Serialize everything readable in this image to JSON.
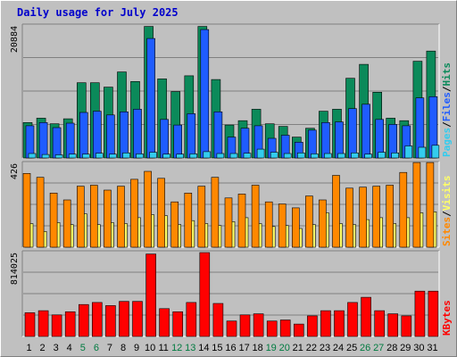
{
  "title": "Daily usage for July 2025",
  "chart_data": {
    "type": "bar",
    "categories": [
      "1",
      "2",
      "3",
      "4",
      "5",
      "6",
      "7",
      "8",
      "9",
      "10",
      "11",
      "12",
      "13",
      "14",
      "15",
      "16",
      "17",
      "18",
      "19",
      "20",
      "21",
      "22",
      "23",
      "24",
      "25",
      "26",
      "27",
      "28",
      "29",
      "30",
      "31"
    ],
    "weekend_days": [
      "5",
      "6",
      "12",
      "13",
      "19",
      "20",
      "26",
      "27"
    ],
    "colors": {
      "hits": "#0b8a5a",
      "files": "#1f5cff",
      "pages": "#33ccee",
      "visits": "#ffff66",
      "sites": "#ff8800",
      "kbytes": "#ff0000",
      "weekday_label": "#000000",
      "weekend_label": "#007b40"
    },
    "panels": [
      {
        "id": "traffic",
        "ymax_label": "20884",
        "ymax": 20884,
        "legend": [
          "Pages",
          "/",
          "Files",
          "/",
          "Hits"
        ],
        "series": [
          {
            "name": "Hits",
            "values": [
              5600,
              6300,
              5400,
              6200,
              11900,
              11900,
              11200,
              13600,
              12100,
              20800,
              12500,
              10500,
              13000,
              20800,
              12400,
              5200,
              5900,
              7700,
              5400,
              5000,
              3300,
              4700,
              7400,
              7700,
              12600,
              14800,
              10400,
              6300,
              5900,
              15300,
              16900
            ]
          },
          {
            "name": "Files",
            "values": [
              5100,
              5600,
              4800,
              5500,
              7200,
              7400,
              6800,
              7300,
              7700,
              18900,
              6100,
              5200,
              7000,
              20300,
              7300,
              3300,
              4700,
              5100,
              3100,
              3600,
              2500,
              4400,
              5600,
              5700,
              7800,
              8500,
              6100,
              5300,
              5100,
              9500,
              9700
            ]
          },
          {
            "name": "Pages",
            "values": [
              700,
              550,
              500,
              600,
              600,
              750,
              600,
              800,
              650,
              900,
              600,
              600,
              650,
              1000,
              700,
              700,
              750,
              1400,
              900,
              700,
              800,
              650,
              700,
              700,
              800,
              600,
              900,
              800,
              1900,
              1700,
              2000
            ]
          }
        ]
      },
      {
        "id": "visitors",
        "ymax_label": "426",
        "ymax": 426,
        "legend": [
          "Sites",
          "/",
          "Visits"
        ],
        "series": [
          {
            "name": "Visits",
            "values": [
              120,
              80,
              125,
              115,
              170,
              115,
              125,
              120,
              150,
              165,
              160,
              115,
              135,
              120,
              110,
              130,
              150,
              120,
              105,
              110,
              95,
              115,
              175,
              120,
              115,
              140,
              150,
              120,
              150,
              175,
              180
            ]
          },
          {
            "name": "Sites",
            "values": [
              375,
              355,
              275,
              240,
              310,
              315,
              290,
              310,
              345,
              385,
              350,
              230,
              275,
              310,
              355,
              250,
              270,
              315,
              230,
              220,
              200,
              260,
              240,
              365,
              300,
              305,
              310,
              315,
              380,
              430,
              430
            ]
          }
        ]
      },
      {
        "id": "kbytes",
        "ymax_label": "814025",
        "ymax": 814025,
        "legend": [
          "KBytes"
        ],
        "series": [
          {
            "name": "KBytes",
            "values": [
              230000,
              250000,
              210000,
              240000,
              310000,
              330000,
              300000,
              340000,
              340000,
              800000,
              270000,
              240000,
              330000,
              814025,
              320000,
              150000,
              210000,
              220000,
              150000,
              160000,
              120000,
              200000,
              250000,
              250000,
              330000,
              380000,
              250000,
              220000,
              200000,
              440000,
              440000
            ]
          }
        ]
      }
    ]
  }
}
